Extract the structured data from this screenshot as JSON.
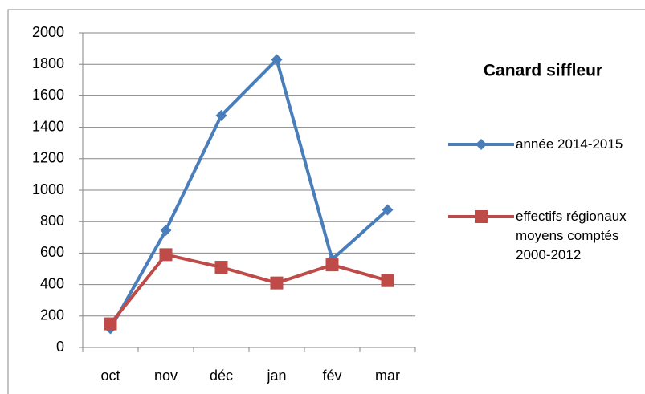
{
  "chart_data": {
    "type": "line",
    "title": "Canard siffleur",
    "categories": [
      "oct",
      "nov",
      "déc",
      "jan",
      "fév",
      "mar"
    ],
    "series": [
      {
        "name": "année 2014-2015",
        "color": "#4a7ebb",
        "marker": "diamond",
        "values": [
          120,
          745,
          1475,
          1830,
          560,
          875
        ]
      },
      {
        "name": "effectifs régionaux moyens comptés 2000-2012",
        "color": "#be4b48",
        "marker": "square",
        "values": [
          150,
          590,
          510,
          410,
          525,
          425
        ]
      }
    ],
    "ylim": [
      0,
      2000
    ],
    "yticks": [
      0,
      200,
      400,
      600,
      800,
      1000,
      1200,
      1400,
      1600,
      1800,
      2000
    ],
    "grid": true
  }
}
